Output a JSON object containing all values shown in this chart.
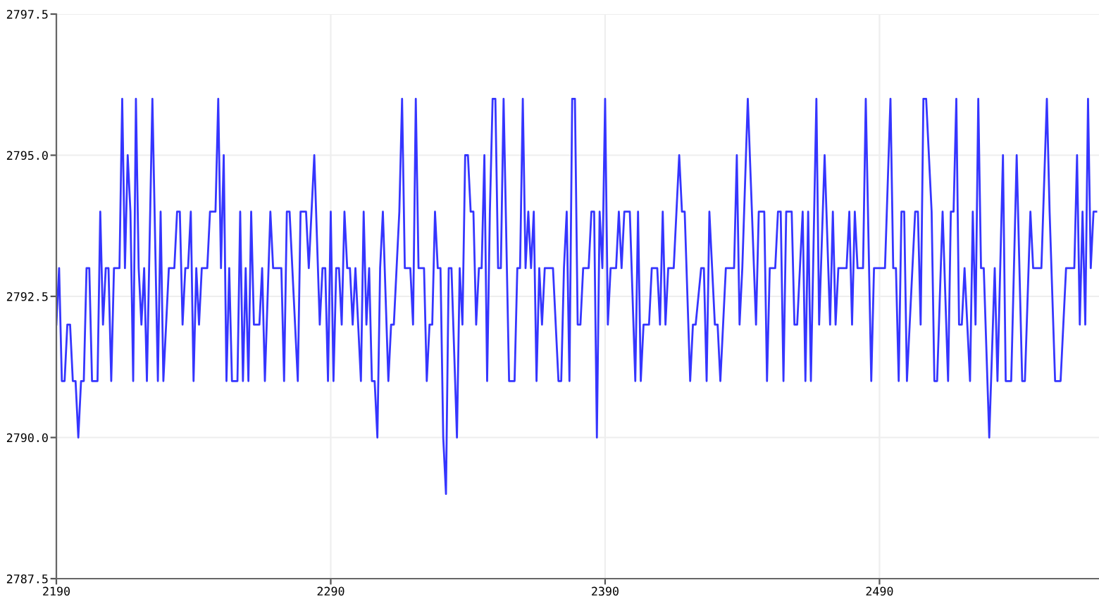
{
  "chart_data": {
    "type": "line",
    "color": "#3535ff",
    "grid": true,
    "marker": "none",
    "line_style": "solid",
    "xlim": [
      2190,
      2570
    ],
    "xticks": [
      2190,
      2290,
      2390,
      2490
    ],
    "ylim": [
      2787.5,
      2797.5
    ],
    "yticks": [
      {
        "value": 2787.5,
        "label": "2787.5"
      },
      {
        "value": 2790,
        "label": "2790.0"
      },
      {
        "value": 2792.5,
        "label": "2792.5"
      },
      {
        "value": 2795,
        "label": "2795.0"
      },
      {
        "value": 2797.5,
        "label": "2797.5"
      }
    ],
    "x": [
      2190,
      2191,
      2192,
      2193,
      2194,
      2195,
      2196,
      2197,
      2198,
      2199,
      2200,
      2201,
      2202,
      2203,
      2205,
      2206,
      2207,
      2208,
      2209,
      2210,
      2211,
      2213,
      2214,
      2215,
      2216,
      2217,
      2218,
      2219,
      2220,
      2221,
      2222,
      2223,
      2225,
      2227,
      2228,
      2229,
      2231,
      2233,
      2234,
      2235,
      2236,
      2237,
      2238,
      2239,
      2240,
      2241,
      2242,
      2243,
      2245,
      2246,
      2248,
      2249,
      2250,
      2251,
      2252,
      2253,
      2254,
      2256,
      2257,
      2258,
      2259,
      2260,
      2261,
      2262,
      2264,
      2265,
      2266,
      2268,
      2269,
      2272,
      2273,
      2274,
      2275,
      2278,
      2279,
      2281,
      2282,
      2284,
      2286,
      2287,
      2288,
      2289,
      2290,
      2291,
      2292,
      2293,
      2294,
      2295,
      2296,
      2297,
      2298,
      2299,
      2301,
      2302,
      2303,
      2304,
      2305,
      2306,
      2307,
      2308,
      2309,
      2311,
      2312,
      2313,
      2315,
      2316,
      2317,
      2319,
      2320,
      2321,
      2322,
      2324,
      2325,
      2326,
      2327,
      2328,
      2329,
      2330,
      2331,
      2332,
      2333,
      2334,
      2336,
      2337,
      2338,
      2339,
      2340,
      2341,
      2342,
      2343,
      2344,
      2345,
      2346,
      2347,
      2348,
      2349,
      2350,
      2351,
      2352,
      2353,
      2355,
      2357,
      2358,
      2359,
      2360,
      2361,
      2362,
      2363,
      2364,
      2365,
      2366,
      2367,
      2368,
      2371,
      2373,
      2374,
      2375,
      2376,
      2377,
      2378,
      2379,
      2380,
      2381,
      2382,
      2384,
      2385,
      2386,
      2387,
      2388,
      2389,
      2390,
      2391,
      2392,
      2394,
      2395,
      2396,
      2397,
      2399,
      2401,
      2402,
      2403,
      2404,
      2406,
      2407,
      2409,
      2410,
      2411,
      2412,
      2413,
      2415,
      2417,
      2418,
      2419,
      2421,
      2422,
      2423,
      2425,
      2426,
      2427,
      2428,
      2430,
      2431,
      2432,
      2434,
      2437,
      2438,
      2439,
      2440,
      2442,
      2445,
      2446,
      2448,
      2449,
      2450,
      2452,
      2453,
      2454,
      2455,
      2456,
      2458,
      2459,
      2460,
      2461,
      2462,
      2463,
      2464,
      2465,
      2467,
      2468,
      2470,
      2472,
      2473,
      2474,
      2475,
      2478,
      2479,
      2480,
      2481,
      2482,
      2484,
      2485,
      2487,
      2488,
      2492,
      2494,
      2495,
      2496,
      2497,
      2498,
      2499,
      2500,
      2503,
      2504,
      2505,
      2506,
      2507,
      2509,
      2510,
      2511,
      2513,
      2515,
      2516,
      2517,
      2518,
      2519,
      2520,
      2521,
      2523,
      2524,
      2525,
      2526,
      2527,
      2528,
      2530,
      2532,
      2533,
      2535,
      2536,
      2538,
      2540,
      2542,
      2543,
      2545,
      2546,
      2549,
      2551,
      2552,
      2554,
      2556,
      2558,
      2561,
      2562,
      2563,
      2564,
      2565,
      2566,
      2567,
      2568,
      2569
    ],
    "values": [
      2792,
      2793,
      2791,
      2791,
      2792,
      2792,
      2791,
      2791,
      2790,
      2791,
      2791,
      2793,
      2793,
      2791,
      2791,
      2794,
      2792,
      2793,
      2793,
      2791,
      2793,
      2793,
      2796,
      2793,
      2795,
      2794,
      2791,
      2796,
      2793,
      2792,
      2793,
      2791,
      2796,
      2791,
      2794,
      2791,
      2793,
      2793,
      2794,
      2794,
      2792,
      2793,
      2793,
      2794,
      2791,
      2793,
      2792,
      2793,
      2793,
      2794,
      2794,
      2796,
      2793,
      2795,
      2791,
      2793,
      2791,
      2791,
      2794,
      2791,
      2793,
      2791,
      2794,
      2792,
      2792,
      2793,
      2791,
      2794,
      2793,
      2793,
      2791,
      2794,
      2794,
      2791,
      2794,
      2794,
      2793,
      2795,
      2792,
      2793,
      2793,
      2791,
      2794,
      2791,
      2793,
      2793,
      2792,
      2794,
      2793,
      2793,
      2792,
      2793,
      2791,
      2794,
      2792,
      2793,
      2791,
      2791,
      2790,
      2793,
      2794,
      2791,
      2792,
      2792,
      2794,
      2796,
      2793,
      2793,
      2792,
      2796,
      2793,
      2793,
      2791,
      2792,
      2792,
      2794,
      2793,
      2793,
      2790,
      2789,
      2793,
      2793,
      2790,
      2793,
      2792,
      2795,
      2795,
      2794,
      2794,
      2792,
      2793,
      2793,
      2795,
      2791,
      2794,
      2796,
      2796,
      2793,
      2793,
      2796,
      2791,
      2791,
      2793,
      2793,
      2796,
      2793,
      2794,
      2793,
      2794,
      2791,
      2793,
      2792,
      2793,
      2793,
      2791,
      2791,
      2793,
      2794,
      2791,
      2796,
      2796,
      2792,
      2792,
      2793,
      2793,
      2794,
      2794,
      2790,
      2794,
      2793,
      2796,
      2792,
      2793,
      2793,
      2794,
      2793,
      2794,
      2794,
      2791,
      2794,
      2791,
      2792,
      2792,
      2793,
      2793,
      2792,
      2794,
      2792,
      2793,
      2793,
      2795,
      2794,
      2794,
      2791,
      2792,
      2792,
      2793,
      2793,
      2791,
      2794,
      2792,
      2792,
      2791,
      2793,
      2793,
      2795,
      2792,
      2793,
      2796,
      2792,
      2794,
      2794,
      2791,
      2793,
      2793,
      2794,
      2794,
      2791,
      2794,
      2794,
      2792,
      2792,
      2793,
      2794,
      2791,
      2794,
      2791,
      2796,
      2792,
      2795,
      2792,
      2794,
      2792,
      2793,
      2793,
      2794,
      2792,
      2794,
      2793,
      2793,
      2796,
      2791,
      2793,
      2793,
      2796,
      2793,
      2793,
      2791,
      2794,
      2794,
      2791,
      2794,
      2794,
      2792,
      2796,
      2796,
      2794,
      2791,
      2791,
      2794,
      2791,
      2794,
      2794,
      2796,
      2792,
      2792,
      2793,
      2791,
      2794,
      2792,
      2796,
      2793,
      2793,
      2790,
      2793,
      2791,
      2795,
      2791,
      2791,
      2795,
      2791,
      2791,
      2794,
      2793,
      2793,
      2796,
      2794,
      2791,
      2791,
      2793,
      2793,
      2795,
      2792,
      2794,
      2792,
      2796,
      2793,
      2794,
      2794
    ]
  }
}
